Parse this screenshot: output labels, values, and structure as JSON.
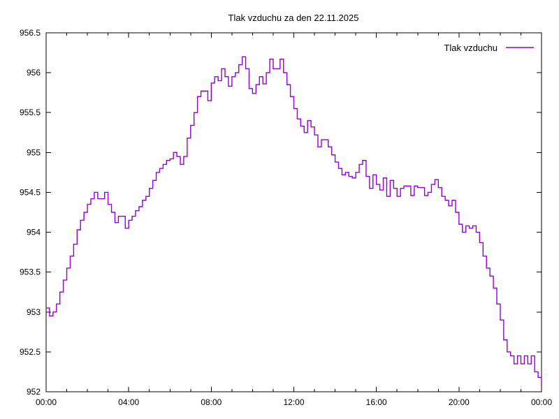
{
  "title": "Tlak vzduchu za den 22.11.2025",
  "legend": {
    "label": "Tlak vzduchu",
    "color": "#9400d3"
  },
  "chart_data": {
    "type": "line",
    "title": "Tlak vzduchu za den 22.11.2025",
    "xlabel": "",
    "ylabel": "",
    "x_range_hours": [
      0,
      24
    ],
    "ylim": [
      952,
      956.5
    ],
    "grid": false,
    "legend_position": "top-right-inside",
    "x_tick_labels": [
      "00:00",
      "04:00",
      "08:00",
      "12:00",
      "16:00",
      "20:00",
      "00:00"
    ],
    "x_major_tick_hours": [
      0,
      4,
      8,
      12,
      16,
      20,
      24
    ],
    "x_minor_tick_interval_hours": 1,
    "y_ticks": [
      952,
      952.5,
      953,
      953.5,
      954,
      954.5,
      955,
      955.5,
      956,
      956.5
    ],
    "series": [
      {
        "name": "Tlak vzduchu",
        "color": "#9400d3",
        "x_start_min": 0,
        "x_step_min": 10,
        "values": [
          953.05,
          952.95,
          953.0,
          953.1,
          953.25,
          953.4,
          953.55,
          953.7,
          953.85,
          954.03,
          954.15,
          954.25,
          954.35,
          954.42,
          954.5,
          954.42,
          954.42,
          954.5,
          954.35,
          954.25,
          954.12,
          954.2,
          954.2,
          954.05,
          954.15,
          954.2,
          954.27,
          954.32,
          954.4,
          954.45,
          954.55,
          954.65,
          954.75,
          954.8,
          954.85,
          954.9,
          954.92,
          955.0,
          954.95,
          954.85,
          954.95,
          955.18,
          955.34,
          955.5,
          955.7,
          955.77,
          955.77,
          955.65,
          955.87,
          955.95,
          955.9,
          956.05,
          955.95,
          955.83,
          955.95,
          956.0,
          956.1,
          956.2,
          956.05,
          955.8,
          955.74,
          955.85,
          955.95,
          955.86,
          956.0,
          956.17,
          956.05,
          956.05,
          956.17,
          956.0,
          955.85,
          955.7,
          955.55,
          955.42,
          955.33,
          955.25,
          955.4,
          955.32,
          955.22,
          955.07,
          955.16,
          955.16,
          955.07,
          954.97,
          954.88,
          954.8,
          954.72,
          954.75,
          954.7,
          954.68,
          954.75,
          954.85,
          954.9,
          954.7,
          954.55,
          954.72,
          954.6,
          954.53,
          954.68,
          954.45,
          954.65,
          954.55,
          954.45,
          954.55,
          954.58,
          954.58,
          954.46,
          954.58,
          954.56,
          954.56,
          954.46,
          954.5,
          954.6,
          954.66,
          954.56,
          954.45,
          954.4,
          954.33,
          954.4,
          954.25,
          954.1,
          954.0,
          954.08,
          954.05,
          954.08,
          954.0,
          953.87,
          953.7,
          953.55,
          953.45,
          953.3,
          953.1,
          952.9,
          952.65,
          952.5,
          952.45,
          952.35,
          952.45,
          952.35,
          952.45,
          952.35,
          952.45,
          952.25,
          952.18,
          952.08
        ]
      }
    ]
  }
}
